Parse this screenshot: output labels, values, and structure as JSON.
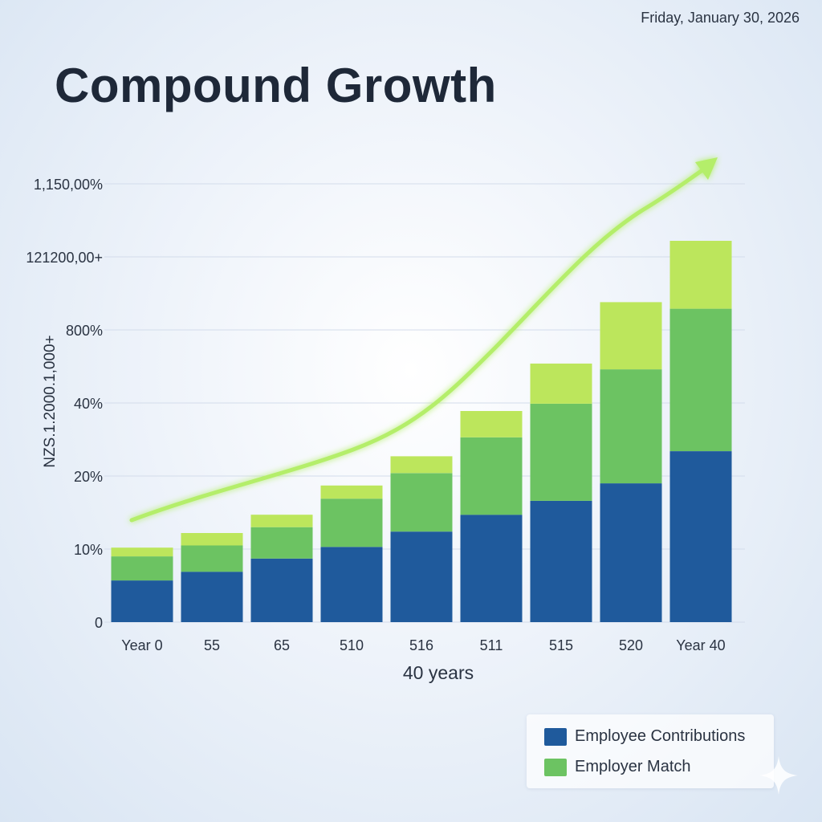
{
  "header": {
    "date": "Friday, January 30, 2026",
    "title": "Compound Growth"
  },
  "chart_data": {
    "type": "bar",
    "stacked": true,
    "title": "Compound Growth",
    "xlabel": "40 years",
    "ylabel": "NZS.1.2000.1,000+",
    "y_tick_labels": [
      "0",
      "10%",
      "20%",
      "40%",
      "800%",
      "121200,00+",
      "1,150,00%"
    ],
    "categories": [
      "Year 0",
      "55",
      "65",
      "510",
      "516",
      "511",
      "515",
      "520",
      "Year 40"
    ],
    "ylim": [
      0,
      6
    ],
    "grid": true,
    "trend_arrow": true,
    "series": [
      {
        "name": "Employee Contributions",
        "color": "#1f5a9c",
        "values": [
          0.57,
          0.69,
          0.87,
          1.03,
          1.24,
          1.47,
          1.66,
          1.9,
          2.34
        ]
      },
      {
        "name": "Employer Match",
        "color": "#6cc362",
        "values": [
          0.33,
          0.36,
          0.43,
          0.66,
          0.8,
          1.06,
          1.33,
          1.56,
          1.95
        ]
      },
      {
        "name": "",
        "color": "#bce65c",
        "values": [
          0.12,
          0.17,
          0.17,
          0.18,
          0.23,
          0.36,
          0.55,
          0.92,
          0.93
        ]
      }
    ]
  },
  "legend": {
    "position": "bottom-right",
    "items": [
      {
        "label": "Employee Contributions",
        "color": "#1f5a9c"
      },
      {
        "label": "Employer Match",
        "color": "#6cc362"
      }
    ]
  }
}
